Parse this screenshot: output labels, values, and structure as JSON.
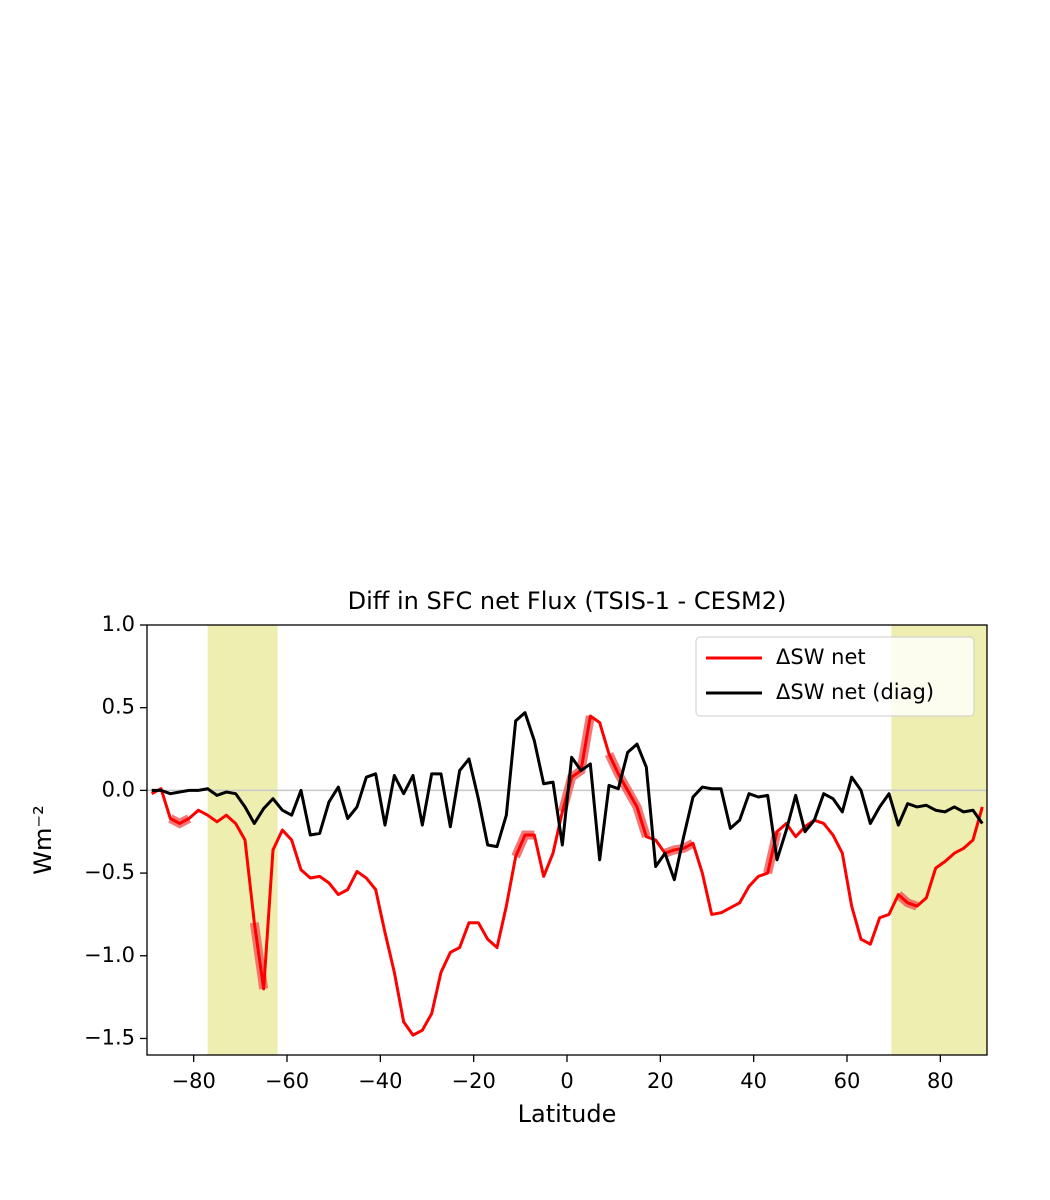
{
  "chart_data": {
    "type": "line",
    "title": "Diff in SFC net Flux (TSIS-1 - CESM2)",
    "xlabel": "Latitude",
    "ylabel": "Wm⁻²",
    "x": [
      -89,
      -87,
      -85,
      -83,
      -81,
      -79,
      -77,
      -75,
      -73,
      -71,
      -69,
      -67,
      -65,
      -63,
      -61,
      -59,
      -57,
      -55,
      -53,
      -51,
      -49,
      -47,
      -45,
      -43,
      -41,
      -39,
      -37,
      -35,
      -33,
      -31,
      -29,
      -27,
      -25,
      -23,
      -21,
      -19,
      -17,
      -15,
      -13,
      -11,
      -9,
      -7,
      -5,
      -3,
      -1,
      1,
      3,
      5,
      7,
      9,
      11,
      13,
      15,
      17,
      19,
      21,
      23,
      25,
      27,
      29,
      31,
      33,
      35,
      37,
      39,
      41,
      43,
      45,
      47,
      49,
      51,
      53,
      55,
      57,
      59,
      61,
      63,
      65,
      67,
      69,
      71,
      73,
      75,
      77,
      79,
      81,
      83,
      85,
      87,
      89
    ],
    "series": [
      {
        "name": "ΔSW net",
        "color": "#ff0000",
        "values": [
          -0.02,
          0.01,
          -0.17,
          -0.2,
          -0.17,
          -0.12,
          -0.15,
          -0.19,
          -0.15,
          -0.2,
          -0.3,
          -0.8,
          -1.2,
          -0.36,
          -0.24,
          -0.3,
          -0.48,
          -0.53,
          -0.52,
          -0.56,
          -0.63,
          -0.6,
          -0.49,
          -0.53,
          -0.6,
          -0.86,
          -1.1,
          -1.4,
          -1.48,
          -1.45,
          -1.35,
          -1.1,
          -0.98,
          -0.95,
          -0.8,
          -0.8,
          -0.9,
          -0.95,
          -0.7,
          -0.4,
          -0.27,
          -0.27,
          -0.52,
          -0.38,
          -0.13,
          0.08,
          0.12,
          0.45,
          0.41,
          0.22,
          0.1,
          0.0,
          -0.1,
          -0.28,
          -0.3,
          -0.38,
          -0.36,
          -0.35,
          -0.32,
          -0.5,
          -0.75,
          -0.74,
          -0.71,
          -0.68,
          -0.58,
          -0.52,
          -0.5,
          -0.25,
          -0.2,
          -0.28,
          -0.22,
          -0.18,
          -0.2,
          -0.27,
          -0.38,
          -0.7,
          -0.9,
          -0.93,
          -0.77,
          -0.75,
          -0.63,
          -0.68,
          -0.7,
          -0.65,
          -0.47,
          -0.43,
          -0.38,
          -0.35,
          -0.3,
          -0.1
        ]
      },
      {
        "name": "ΔSW net (diag)",
        "color": "#000000",
        "values": [
          0.0,
          0.0,
          -0.02,
          -0.01,
          0.0,
          0.0,
          0.01,
          -0.03,
          -0.01,
          -0.02,
          -0.1,
          -0.2,
          -0.11,
          -0.05,
          -0.12,
          -0.15,
          0.0,
          -0.27,
          -0.26,
          -0.07,
          0.02,
          -0.17,
          -0.1,
          0.08,
          0.1,
          -0.21,
          0.09,
          -0.02,
          0.09,
          -0.21,
          0.1,
          0.1,
          -0.22,
          0.12,
          0.19,
          -0.05,
          -0.33,
          -0.34,
          -0.15,
          0.42,
          0.47,
          0.3,
          0.04,
          0.05,
          -0.33,
          0.2,
          0.12,
          0.16,
          -0.42,
          0.03,
          0.01,
          0.23,
          0.28,
          0.14,
          -0.46,
          -0.38,
          -0.54,
          -0.28,
          -0.04,
          0.02,
          0.01,
          0.01,
          -0.23,
          -0.18,
          -0.02,
          -0.04,
          -0.03,
          -0.42,
          -0.24,
          -0.03,
          -0.25,
          -0.18,
          -0.02,
          -0.05,
          -0.13,
          0.08,
          0.0,
          -0.2,
          -0.1,
          -0.02,
          -0.21,
          -0.08,
          -0.1,
          -0.09,
          -0.12,
          -0.13,
          -0.1,
          -0.13,
          -0.12,
          -0.2
        ]
      }
    ],
    "highlight_ranges": [
      [
        -85,
        -81
      ],
      [
        -67,
        -65
      ],
      [
        -11,
        -7
      ],
      [
        -1,
        5
      ],
      [
        9,
        17
      ],
      [
        21,
        27
      ],
      [
        43,
        45
      ],
      [
        71,
        75
      ]
    ],
    "highlight_color": "#f06060",
    "shaded_spans": [
      [
        -77,
        -62
      ],
      [
        69.5,
        90
      ]
    ],
    "shade_color": "#eeeeb0",
    "hline": 0,
    "xlim": [
      -90,
      90
    ],
    "ylim": [
      -1.6,
      1.0
    ],
    "xticks": [
      {
        "value": -80,
        "label": "−80"
      },
      {
        "value": -60,
        "label": "−60"
      },
      {
        "value": -40,
        "label": "−40"
      },
      {
        "value": -20,
        "label": "−20"
      },
      0,
      20,
      40,
      60,
      80
    ],
    "yticks": [
      {
        "value": -1.5,
        "label": "−1.5"
      },
      {
        "value": -1,
        "label": "−1.0"
      },
      {
        "value": -0.5,
        "label": "−0.5"
      },
      {
        "value": 0,
        "label": "0.0"
      },
      0.5,
      {
        "value": 1,
        "label": "1.0"
      }
    ],
    "legend": "upper right"
  }
}
